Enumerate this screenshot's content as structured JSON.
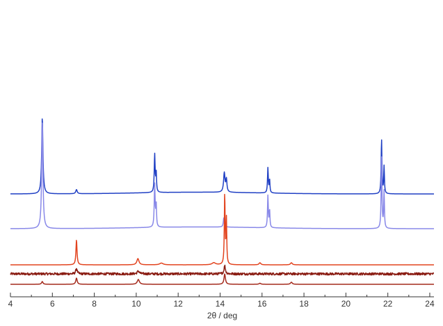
{
  "chart_data": {
    "type": "line",
    "title": "",
    "xlabel": "2θ / deg",
    "ylabel": "",
    "xlim": [
      4,
      24.2
    ],
    "grid": false,
    "legend": "none",
    "x_ticks": [
      4,
      6,
      8,
      10,
      12,
      14,
      16,
      18,
      20,
      22,
      24
    ],
    "series": [
      {
        "color": "#1f3fc4",
        "baseline": 10.2,
        "peaks": [
          {
            "x": 5.52,
            "h": 11.0,
            "w": 0.035
          },
          {
            "x": 7.15,
            "h": 0.6,
            "w": 0.04
          },
          {
            "x": 10.88,
            "h": 5.5,
            "w": 0.025
          },
          {
            "x": 10.95,
            "h": 2.8,
            "w": 0.02
          },
          {
            "x": 14.2,
            "h": 2.8,
            "w": 0.04
          },
          {
            "x": 14.3,
            "h": 1.8,
            "w": 0.03
          },
          {
            "x": 16.28,
            "h": 3.6,
            "w": 0.022
          },
          {
            "x": 16.36,
            "h": 1.9,
            "w": 0.02
          },
          {
            "x": 21.7,
            "h": 7.9,
            "w": 0.022
          },
          {
            "x": 21.82,
            "h": 3.9,
            "w": 0.02
          }
        ]
      },
      {
        "color": "#8888e8",
        "baseline": 5.2,
        "peaks": [
          {
            "x": 5.52,
            "h": 15.5,
            "w": 0.035
          },
          {
            "x": 10.88,
            "h": 6.2,
            "w": 0.025
          },
          {
            "x": 10.95,
            "h": 3.2,
            "w": 0.02
          },
          {
            "x": 14.18,
            "h": 1.4,
            "w": 0.03
          },
          {
            "x": 16.28,
            "h": 4.6,
            "w": 0.022
          },
          {
            "x": 16.36,
            "h": 2.5,
            "w": 0.02
          },
          {
            "x": 21.7,
            "h": 10.5,
            "w": 0.022
          },
          {
            "x": 21.82,
            "h": 5.3,
            "w": 0.02
          }
        ]
      },
      {
        "color": "#e2431e",
        "baseline": 0.0,
        "peaks": [
          {
            "x": 7.15,
            "h": 3.6,
            "w": 0.03
          },
          {
            "x": 10.08,
            "h": 0.9,
            "w": 0.06
          },
          {
            "x": 11.2,
            "h": 0.25,
            "w": 0.1
          },
          {
            "x": 13.7,
            "h": 0.3,
            "w": 0.1
          },
          {
            "x": 14.22,
            "h": 10.2,
            "w": 0.022
          },
          {
            "x": 14.3,
            "h": 6.5,
            "w": 0.02
          },
          {
            "x": 15.9,
            "h": 0.3,
            "w": 0.05
          },
          {
            "x": 17.4,
            "h": 0.3,
            "w": 0.05
          }
        ]
      },
      {
        "color": "#8a1c12",
        "baseline": -1.3,
        "noise": 0.35,
        "peaks": [
          {
            "x": 7.15,
            "h": 0.8,
            "w": 0.04
          },
          {
            "x": 10.1,
            "h": 0.4,
            "w": 0.06
          },
          {
            "x": 14.22,
            "h": 1.2,
            "w": 0.04
          }
        ]
      },
      {
        "color": "#a42a1c",
        "baseline": -2.8,
        "peaks": [
          {
            "x": 5.52,
            "h": 0.4,
            "w": 0.04
          },
          {
            "x": 7.15,
            "h": 0.9,
            "w": 0.04
          },
          {
            "x": 10.1,
            "h": 0.7,
            "w": 0.06
          },
          {
            "x": 14.22,
            "h": 1.5,
            "w": 0.04
          },
          {
            "x": 15.9,
            "h": 0.15,
            "w": 0.05
          },
          {
            "x": 17.4,
            "h": 0.3,
            "w": 0.05
          }
        ]
      }
    ]
  }
}
